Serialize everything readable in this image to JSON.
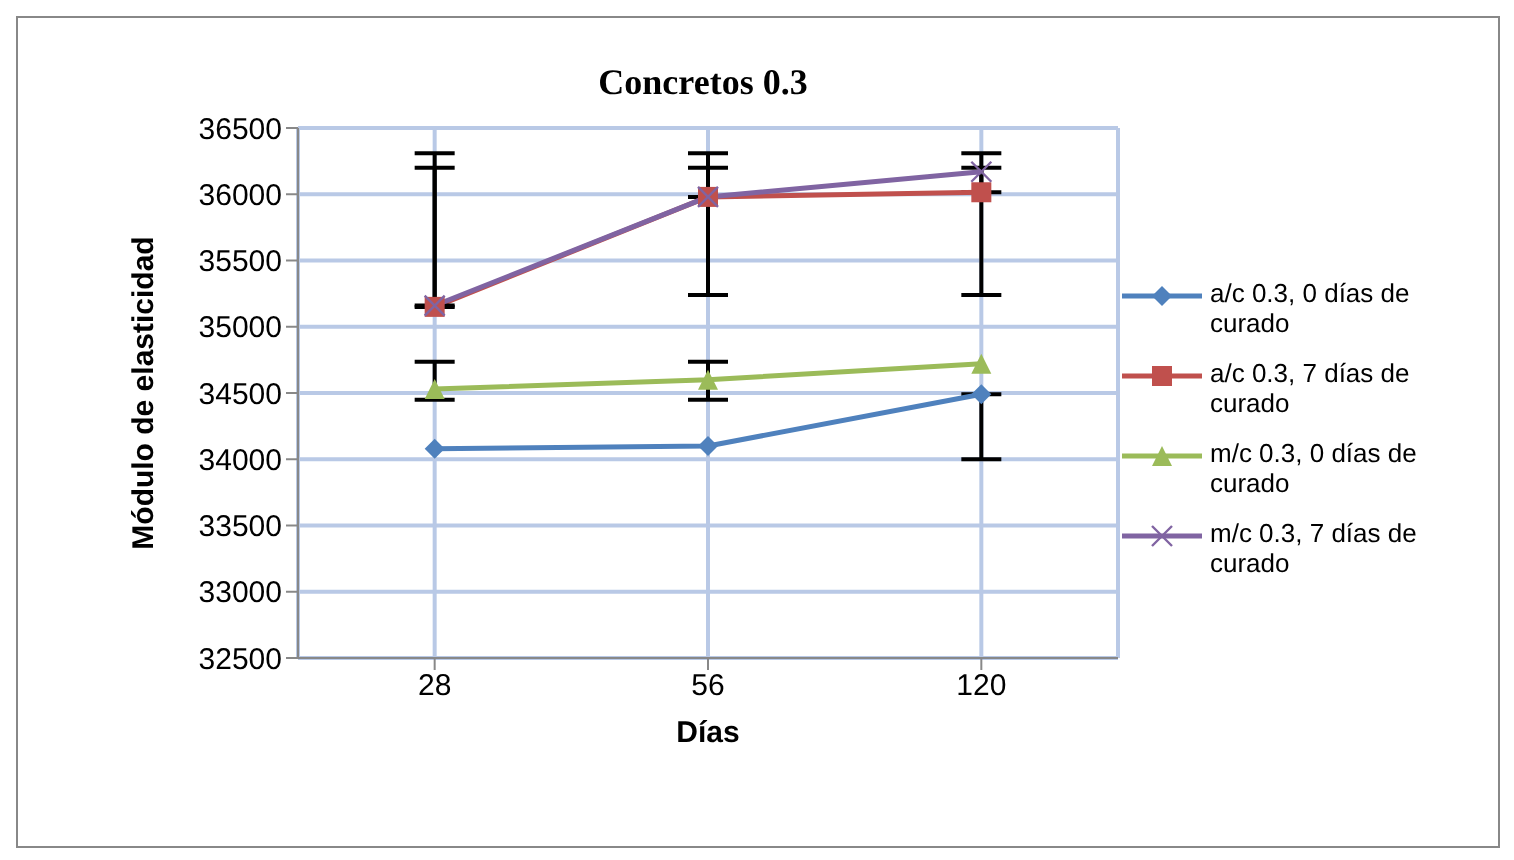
{
  "chart_data": {
    "type": "line",
    "title": "Concretos 0.3",
    "xlabel": "Días",
    "ylabel": "Módulo de elasticidad",
    "categories": [
      "28",
      "56",
      "120"
    ],
    "series": [
      {
        "name": "a/c 0.3, 0 días de curado",
        "color": "#4f81bd",
        "marker": "diamond",
        "values": [
          34080,
          34100,
          34490
        ],
        "errors": [
          null,
          null,
          [
            34000,
            34490
          ]
        ]
      },
      {
        "name": "a/c 0.3, 7 días de curado",
        "color": "#c0504d",
        "marker": "square",
        "values": [
          35150,
          35980,
          36015
        ],
        "errors": [
          [
            35150,
            36200
          ],
          [
            35980,
            36200
          ],
          [
            36015,
            36200
          ]
        ]
      },
      {
        "name": "m/c 0.3, 0 días de curado",
        "color": "#9bbb59",
        "marker": "triangle",
        "values": [
          34530,
          34600,
          34720
        ],
        "errors": [
          [
            34450,
            34735
          ],
          [
            34450,
            34735
          ],
          null
        ]
      },
      {
        "name": "m/c 0.3, 7 días de curado",
        "color": "#8064a2",
        "marker": "cross",
        "values": [
          35160,
          35980,
          36170
        ],
        "errors": [
          [
            35160,
            36310
          ],
          [
            35240,
            36310
          ],
          [
            35240,
            36310
          ]
        ]
      }
    ],
    "ylim": [
      32500,
      36500
    ],
    "yticks": [
      32500,
      33000,
      33500,
      34000,
      34500,
      35000,
      35500,
      36000,
      36500
    ],
    "grid": true,
    "legend": "right"
  }
}
